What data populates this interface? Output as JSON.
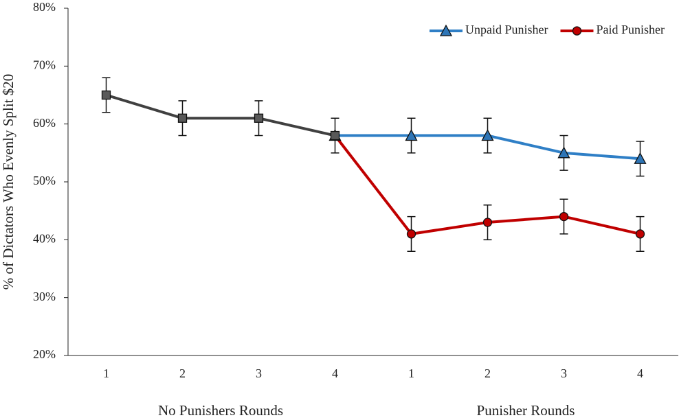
{
  "chart_data": {
    "type": "line",
    "y_label": "% of Dictators Who Evenly Split $20",
    "categories": [
      "1",
      "2",
      "3",
      "4",
      "1",
      "2",
      "3",
      "4"
    ],
    "groups": [
      "No Punishers Rounds",
      "Punisher Rounds"
    ],
    "ylim": [
      20,
      80
    ],
    "yticks": [
      {
        "value": 20,
        "label": "20%"
      },
      {
        "value": 30,
        "label": "30%"
      },
      {
        "value": 40,
        "label": "40%"
      },
      {
        "value": 50,
        "label": "50%"
      },
      {
        "value": 60,
        "label": "60%"
      },
      {
        "value": 70,
        "label": "70%"
      },
      {
        "value": 80,
        "label": "80%"
      }
    ],
    "legend": "top-right",
    "series": [
      {
        "name": "Unpaid Punisher",
        "color": "#2f7fc6",
        "marker": "triangle",
        "marker_fill": "#2e75b6",
        "values": [
          null,
          null,
          null,
          58,
          58,
          58,
          55,
          54
        ],
        "errors": [
          null,
          null,
          null,
          null,
          3,
          3,
          3,
          3
        ]
      },
      {
        "name": "Paid Punisher",
        "color": "#c00000",
        "marker": "circle",
        "marker_fill": "#c00000",
        "values": [
          null,
          null,
          null,
          58,
          41,
          43,
          44,
          41
        ],
        "errors": [
          null,
          null,
          null,
          null,
          3,
          3,
          3,
          3
        ]
      },
      {
        "color": "#404040",
        "marker": "square",
        "marker_fill": "#595959",
        "values": [
          65,
          61,
          61,
          58,
          null,
          null,
          null,
          null
        ],
        "errors": [
          3,
          3,
          3,
          3,
          null,
          null,
          null,
          null
        ]
      }
    ]
  }
}
